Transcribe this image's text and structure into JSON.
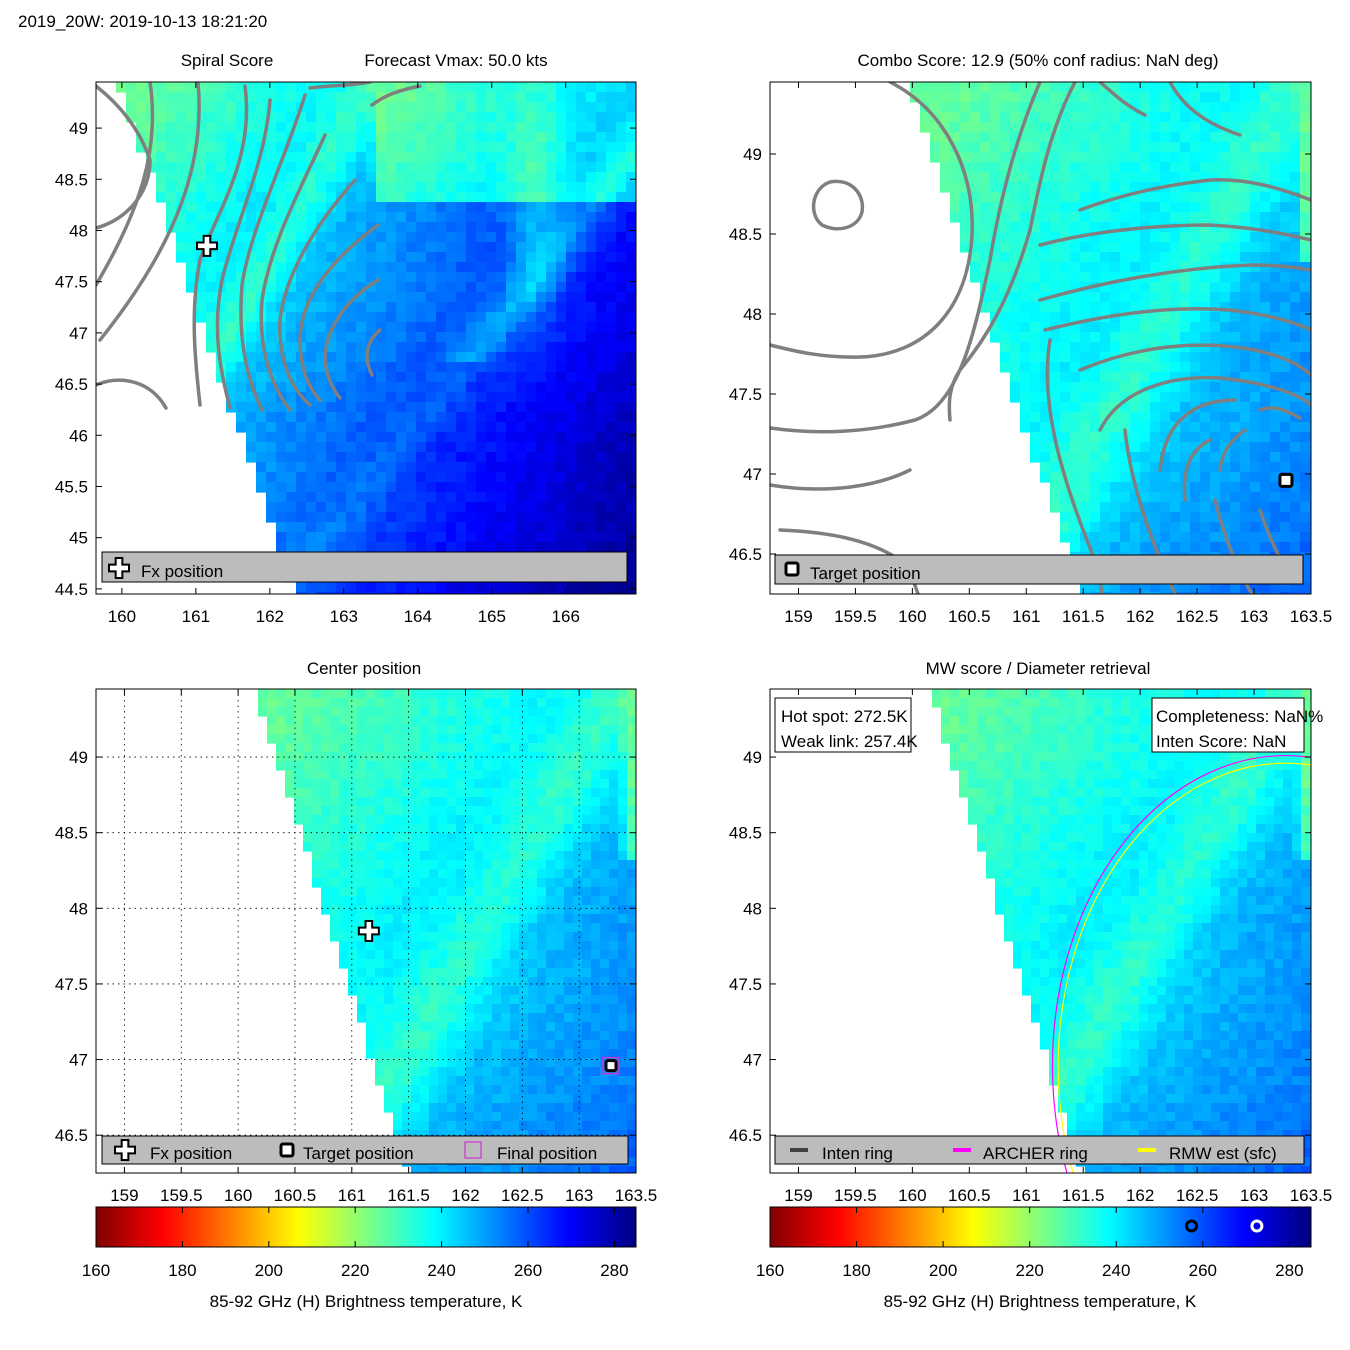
{
  "figure_title": "2019_20W: 2019-10-13 18:21:20",
  "colors": {
    "contour": "#7f7f7f",
    "legend_bg": "#bcbcbc",
    "archer_ring": "#ff00ff",
    "rmw_ring": "#ffff00",
    "inten_ring": "#404040",
    "final_marker": "#cc33cc"
  },
  "colormap": {
    "name": "jet",
    "stops": [
      "#800000",
      "#ff0000",
      "#ff8000",
      "#ffff00",
      "#80ff80",
      "#00ffff",
      "#0080ff",
      "#0000ff",
      "#000080"
    ]
  },
  "chart_data": [
    {
      "type": "heatmap",
      "panel": "spiral",
      "title": "Spiral Score",
      "subtitle": "Forecast Vmax: 50.0 kts",
      "xlim": [
        159.65,
        166.95
      ],
      "ylim": [
        44.45,
        49.45
      ],
      "xticks": [
        160,
        161,
        162,
        163,
        164,
        165,
        166
      ],
      "yticks": [
        44.5,
        45,
        45.5,
        46,
        46.5,
        47,
        47.5,
        48,
        48.5,
        49
      ],
      "legend": [
        "Fx position"
      ],
      "fx_position": [
        161.15,
        47.85
      ]
    },
    {
      "type": "heatmap",
      "panel": "combo",
      "title": "Combo Score: 12.9  (50% conf radius: NaN deg)",
      "xlim": [
        158.75,
        163.5
      ],
      "ylim": [
        46.25,
        49.45
      ],
      "xticks": [
        159,
        159.5,
        160,
        160.5,
        161,
        161.5,
        162,
        162.5,
        163,
        163.5
      ],
      "yticks": [
        46.5,
        47,
        47.5,
        48,
        48.5,
        49
      ],
      "legend": [
        "Target position"
      ],
      "target_position": [
        163.28,
        46.96
      ]
    },
    {
      "type": "heatmap",
      "panel": "center",
      "title": "Center position",
      "xlim": [
        158.75,
        163.5
      ],
      "ylim": [
        46.25,
        49.45
      ],
      "xticks": [
        159,
        159.5,
        160,
        160.5,
        161,
        161.5,
        162,
        162.5,
        163,
        163.5
      ],
      "yticks": [
        46.5,
        47,
        47.5,
        48,
        48.5,
        49
      ],
      "legend": [
        "Fx position",
        "Target position",
        "Final position"
      ],
      "fx_position": [
        161.15,
        47.85
      ],
      "target_position": [
        163.28,
        46.96
      ],
      "final_position": [
        163.28,
        46.96
      ],
      "colorbar": {
        "range": [
          160,
          285
        ],
        "ticks": [
          160,
          180,
          200,
          220,
          240,
          260,
          280
        ],
        "label": "85-92 GHz (H) Brightness temperature, K"
      }
    },
    {
      "type": "heatmap",
      "panel": "mw",
      "title": "MW score / Diameter retrieval",
      "xlim": [
        158.75,
        163.5
      ],
      "ylim": [
        46.25,
        49.45
      ],
      "xticks": [
        159,
        159.5,
        160,
        160.5,
        161,
        161.5,
        162,
        162.5,
        163,
        163.5
      ],
      "yticks": [
        46.5,
        47,
        47.5,
        48,
        48.5,
        49
      ],
      "legend": [
        "Inten ring",
        "ARCHER ring",
        "RMW est (sfc)"
      ],
      "annotations": {
        "hot_spot": "Hot spot: 272.5K",
        "weak_link": "Weak link: 257.4K",
        "completeness": "Completeness: NaN%",
        "inten_score": "Inten Score: NaN"
      },
      "rings": {
        "center": [
          163.28,
          46.96
        ],
        "archer_radius_deg": 2.05,
        "rmw_radius_deg": 2.0
      },
      "colorbar": {
        "range": [
          160,
          285
        ],
        "ticks": [
          160,
          180,
          200,
          220,
          240,
          260,
          280
        ],
        "label": "85-92 GHz (H) Brightness temperature, K",
        "markers": [
          257.4,
          272.5
        ]
      }
    }
  ]
}
